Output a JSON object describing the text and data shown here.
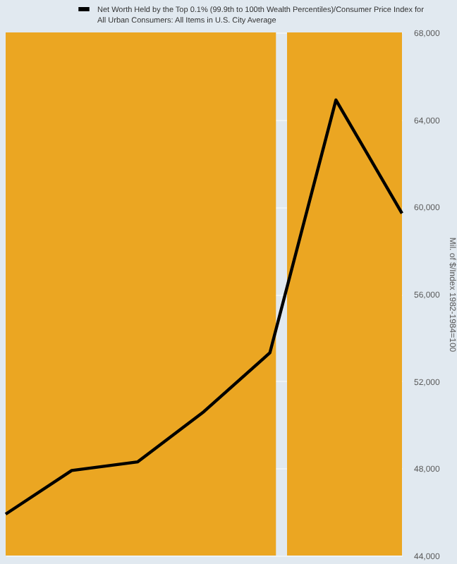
{
  "chart_data": {
    "type": "line",
    "ylabel": "Mil. of $/Index 1982-1984=100",
    "categories": [
      null,
      null,
      null,
      null,
      null,
      null,
      null
    ],
    "series": [
      {
        "name": "Net Worth Held by the Top 0.1% (99.9th to 100th Wealth Percentiles)/Consumer Price Index for All Urban Consumers: All Items in U.S. City Average",
        "color": "#000000",
        "values": [
          45900,
          47900,
          48300,
          50600,
          53300,
          64900,
          59700
        ]
      }
    ],
    "ylim": [
      44000,
      68000
    ],
    "yticks": [
      {
        "value": 44000,
        "label": "44,000"
      },
      {
        "value": 48000,
        "label": "48,000"
      },
      {
        "value": 52000,
        "label": "52,000"
      },
      {
        "value": 56000,
        "label": "56,000"
      },
      {
        "value": 60000,
        "label": "60,000"
      },
      {
        "value": 64000,
        "label": "64,000"
      },
      {
        "value": 68000,
        "label": "68,000"
      }
    ],
    "grid": "y",
    "legend": "top",
    "tick_labels": "y",
    "marker": "none",
    "line_style": "solid"
  }
}
